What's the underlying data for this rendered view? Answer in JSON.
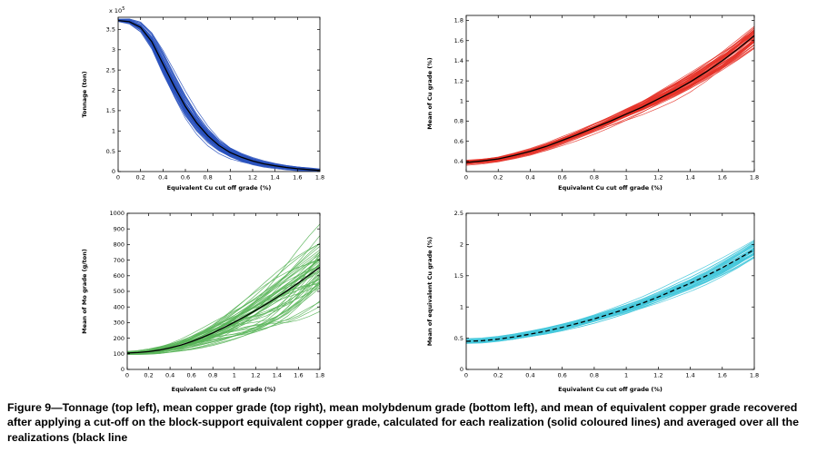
{
  "figure": {
    "caption": "Figure 9—Tonnage (top left), mean copper grade (top right), mean molybdenum grade (bottom left), and mean of equivalent copper grade recovered after applying a cut-off on the block-support equivalent copper grade, calculated for each realization (solid coloured lines) and averaged over all the realizations (black line"
  },
  "chart_data": [
    {
      "id": "tonnage",
      "position": "top-left",
      "type": "line",
      "xlabel": "Equivalent Cu cut off grade (%)",
      "ylabel": "Tonnage (ton)",
      "y_exponent_label": "x 10^5",
      "xlim": [
        0,
        1.8
      ],
      "ylim": [
        0,
        3.8
      ],
      "xticks": [
        0,
        0.2,
        0.4,
        0.6,
        0.8,
        1,
        1.2,
        1.4,
        1.6,
        1.8
      ],
      "xtick_labels": [
        "0",
        "0.2",
        "0.4",
        "0.6",
        "0.8",
        "1",
        "1.2",
        "1.4",
        "1.6",
        "1.8"
      ],
      "yticks": [
        0,
        0.5,
        1,
        1.5,
        2,
        2.5,
        3,
        3.5
      ],
      "ytick_labels": [
        "0",
        "0.5",
        "1",
        "1.5",
        "2",
        "2.5",
        "3",
        "3.5"
      ],
      "x": [
        0,
        0.1,
        0.2,
        0.3,
        0.4,
        0.5,
        0.6,
        0.7,
        0.8,
        0.9,
        1,
        1.1,
        1.2,
        1.3,
        1.4,
        1.5,
        1.6,
        1.7,
        1.8
      ],
      "mean": [
        3.72,
        3.69,
        3.55,
        3.2,
        2.65,
        2.1,
        1.6,
        1.2,
        0.88,
        0.64,
        0.47,
        0.35,
        0.26,
        0.19,
        0.14,
        0.1,
        0.07,
        0.05,
        0.03
      ],
      "spread": [
        0.03,
        0.06,
        0.12,
        0.2,
        0.28,
        0.3,
        0.3,
        0.27,
        0.23,
        0.19,
        0.16,
        0.13,
        0.11,
        0.09,
        0.07,
        0.06,
        0.05,
        0.04,
        0.03
      ],
      "n_realizations": 60,
      "line_color": "#2a52be",
      "mean_color": "#000000",
      "mean_dash": false,
      "legend": "none",
      "grid": false
    },
    {
      "id": "cu_grade",
      "position": "top-right",
      "type": "line",
      "xlabel": "Equivalent Cu cut off grade (%)",
      "ylabel": "Mean of Cu grade (%)",
      "y_exponent_label": "",
      "xlim": [
        0,
        1.8
      ],
      "ylim": [
        0.3,
        1.85
      ],
      "xticks": [
        0,
        0.2,
        0.4,
        0.6,
        0.8,
        1,
        1.2,
        1.4,
        1.6,
        1.8
      ],
      "xtick_labels": [
        "0",
        "0.2",
        "0.4",
        "0.6",
        "0.8",
        "1",
        "1.2",
        "1.4",
        "1.6",
        "1.8"
      ],
      "yticks": [
        0.4,
        0.6,
        0.8,
        1,
        1.2,
        1.4,
        1.6,
        1.8
      ],
      "ytick_labels": [
        "0.4",
        "0.6",
        "0.8",
        "1",
        "1.2",
        "1.4",
        "1.6",
        "1.8"
      ],
      "x": [
        0,
        0.1,
        0.2,
        0.3,
        0.4,
        0.5,
        0.6,
        0.7,
        0.8,
        0.9,
        1,
        1.1,
        1.2,
        1.3,
        1.4,
        1.5,
        1.6,
        1.7,
        1.8
      ],
      "mean": [
        0.39,
        0.405,
        0.425,
        0.46,
        0.5,
        0.55,
        0.61,
        0.67,
        0.735,
        0.8,
        0.87,
        0.94,
        1.02,
        1.1,
        1.19,
        1.29,
        1.4,
        1.52,
        1.65
      ],
      "spread": [
        0.03,
        0.033,
        0.036,
        0.04,
        0.045,
        0.05,
        0.055,
        0.06,
        0.065,
        0.07,
        0.075,
        0.08,
        0.09,
        0.1,
        0.11,
        0.12,
        0.13,
        0.145,
        0.16
      ],
      "n_realizations": 50,
      "line_color": "#e63329",
      "mean_color": "#000000",
      "mean_dash": false,
      "legend": "none",
      "grid": false
    },
    {
      "id": "mo_grade",
      "position": "bottom-left",
      "type": "line",
      "xlabel": "Equivalent Cu cut off grade (%)",
      "ylabel": "Mean of Mo grade (g/ton)",
      "y_exponent_label": "",
      "xlim": [
        0,
        1.8
      ],
      "ylim": [
        0,
        1000
      ],
      "xticks": [
        0,
        0.2,
        0.4,
        0.6,
        0.8,
        1,
        1.2,
        1.4,
        1.6,
        1.8
      ],
      "xtick_labels": [
        "0",
        "0.2",
        "0.4",
        "0.6",
        "0.8",
        "1",
        "1.2",
        "1.4",
        "1.6",
        "1.8"
      ],
      "yticks": [
        0,
        100,
        200,
        300,
        400,
        500,
        600,
        700,
        800,
        900,
        1000
      ],
      "ytick_labels": [
        "0",
        "100",
        "200",
        "300",
        "400",
        "500",
        "600",
        "700",
        "800",
        "900",
        "1000"
      ],
      "x": [
        0,
        0.1,
        0.2,
        0.3,
        0.4,
        0.5,
        0.6,
        0.7,
        0.8,
        0.9,
        1,
        1.1,
        1.2,
        1.3,
        1.4,
        1.5,
        1.6,
        1.7,
        1.8
      ],
      "mean": [
        105,
        108,
        114,
        124,
        138,
        156,
        178,
        204,
        234,
        267,
        302,
        339,
        378,
        419,
        462,
        507,
        554,
        604,
        655
      ],
      "spread": [
        10,
        13,
        18,
        25,
        33,
        43,
        55,
        68,
        82,
        97,
        113,
        130,
        148,
        167,
        187,
        208,
        225,
        240,
        255
      ],
      "n_realizations": 55,
      "line_color": "#5ab55a",
      "mean_color": "#000000",
      "mean_dash": false,
      "legend": "none",
      "grid": false
    },
    {
      "id": "equiv_cu_grade",
      "position": "bottom-right",
      "type": "line",
      "xlabel": "Equivalent Cu cut off grade (%)",
      "ylabel": "Mean of equivalent Cu grade (%)",
      "y_exponent_label": "",
      "xlim": [
        0,
        1.8
      ],
      "ylim": [
        0,
        2.5
      ],
      "xticks": [
        0,
        0.2,
        0.4,
        0.6,
        0.8,
        1,
        1.2,
        1.4,
        1.6,
        1.8
      ],
      "xtick_labels": [
        "0",
        "0.2",
        "0.4",
        "0.6",
        "0.8",
        "1",
        "1.2",
        "1.4",
        "1.6",
        "1.8"
      ],
      "yticks": [
        0,
        0.5,
        1,
        1.5,
        2,
        2.5
      ],
      "ytick_labels": [
        "0",
        "0.5",
        "1",
        "1.5",
        "2",
        "2.5"
      ],
      "x": [
        0,
        0.1,
        0.2,
        0.3,
        0.4,
        0.5,
        0.6,
        0.7,
        0.8,
        0.9,
        1,
        1.1,
        1.2,
        1.3,
        1.4,
        1.5,
        1.6,
        1.7,
        1.8
      ],
      "mean": [
        0.45,
        0.46,
        0.485,
        0.52,
        0.565,
        0.615,
        0.675,
        0.74,
        0.81,
        0.89,
        0.97,
        1.06,
        1.16,
        1.27,
        1.38,
        1.5,
        1.63,
        1.77,
        1.92
      ],
      "spread": [
        0.04,
        0.042,
        0.045,
        0.05,
        0.055,
        0.06,
        0.065,
        0.07,
        0.075,
        0.08,
        0.085,
        0.09,
        0.1,
        0.11,
        0.12,
        0.13,
        0.14,
        0.15,
        0.16
      ],
      "n_realizations": 45,
      "line_color": "#45c8dc",
      "mean_color": "#000000",
      "mean_dash": true,
      "legend": "none",
      "grid": false
    }
  ]
}
